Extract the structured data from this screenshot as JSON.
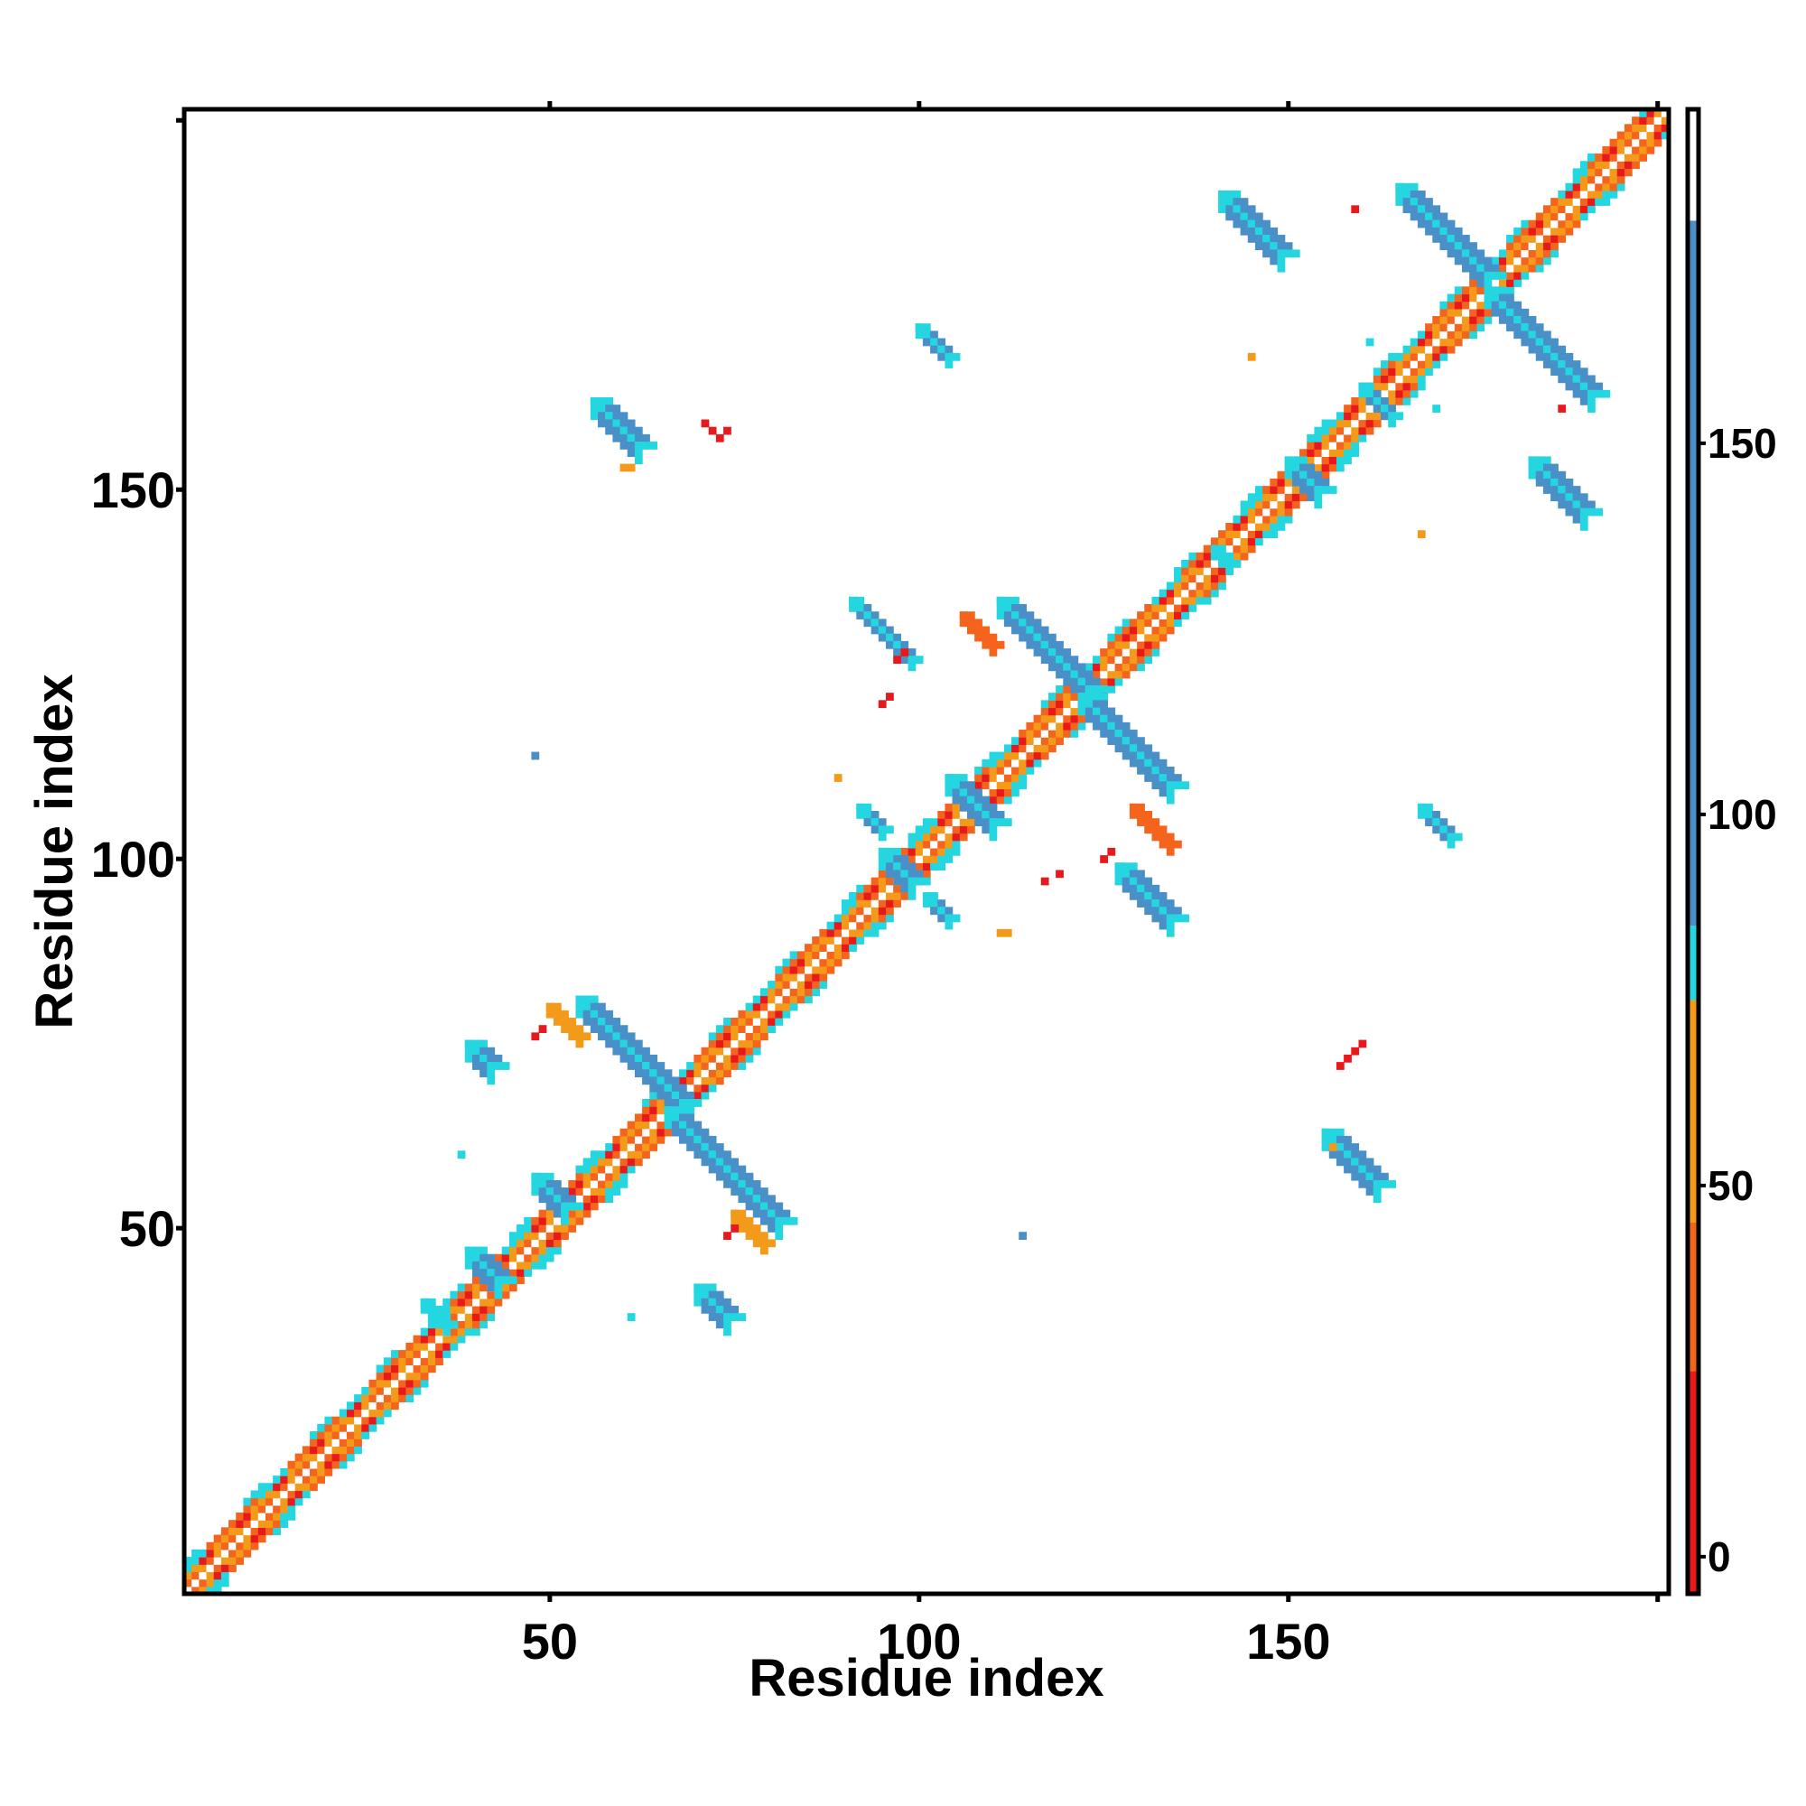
{
  "chart_data": {
    "type": "heatmap",
    "title": "",
    "xlabel": "Residue index",
    "ylabel": "Residue index",
    "xlim": [
      1,
      201
    ],
    "ylim": [
      1,
      201
    ],
    "x_ticks": [
      50,
      100,
      150
    ],
    "y_ticks": [
      50,
      100,
      150
    ],
    "x_tick_labels": [
      "50",
      "100",
      "150"
    ],
    "y_tick_labels": [
      "50",
      "100",
      "150"
    ],
    "colorbar": {
      "range": [
        -5,
        195
      ],
      "ticks": [
        0,
        50,
        100,
        150
      ],
      "tick_labels": [
        "0",
        "50",
        "100",
        "150"
      ],
      "bands": [
        {
          "from": -5,
          "to": 25,
          "color": "#e8191c"
        },
        {
          "from": 25,
          "to": 45,
          "color": "#f4641c"
        },
        {
          "from": 45,
          "to": 75,
          "color": "#f49a1a"
        },
        {
          "from": 75,
          "to": 85,
          "color": "#24d6e0"
        },
        {
          "from": 85,
          "to": 180,
          "color": "#4a90c8"
        },
        {
          "from": 180,
          "to": 195,
          "color": "#ffffff"
        }
      ]
    },
    "color_map": {
      "red": "#e8191c",
      "red_orange": "#f4641c",
      "orange": "#f49a1a",
      "cyan": "#24d6e0",
      "blue": "#4a90c8"
    },
    "diagonal": {
      "from": 1,
      "to": 201
    },
    "strands": [
      {
        "x0": 54,
        "x1": 68,
        "y_start": 81,
        "dir": -1,
        "w": 3,
        "color": "blue"
      },
      {
        "x0": 66,
        "x1": 81,
        "y_start": 66,
        "dir": -1,
        "w": 3,
        "color": "blue"
      },
      {
        "x0": 91,
        "x1": 99,
        "y_start": 135,
        "dir": -1,
        "w": 2,
        "color": "blue"
      },
      {
        "x0": 111,
        "x1": 123,
        "y_start": 135,
        "dir": -1,
        "w": 3,
        "color": "blue"
      },
      {
        "x0": 122,
        "x1": 134,
        "y_start": 122,
        "dir": -1,
        "w": 3,
        "color": "blue"
      },
      {
        "x0": 127,
        "x1": 134,
        "y_start": 99,
        "dir": -1,
        "w": 3,
        "color": "blue"
      },
      {
        "x0": 56,
        "x1": 62,
        "y_start": 162,
        "dir": -1,
        "w": 3,
        "color": "blue"
      },
      {
        "x0": 100,
        "x1": 104,
        "y_start": 172,
        "dir": -1,
        "w": 2,
        "color": "blue"
      },
      {
        "x0": 141,
        "x1": 149,
        "y_start": 190,
        "dir": -1,
        "w": 3,
        "color": "blue"
      },
      {
        "x0": 165,
        "x1": 177,
        "y_start": 191,
        "dir": -1,
        "w": 3,
        "color": "blue"
      },
      {
        "x0": 177,
        "x1": 191,
        "y_start": 177,
        "dir": -1,
        "w": 3,
        "color": "blue"
      },
      {
        "x0": 183,
        "x1": 190,
        "y_start": 154,
        "dir": -1,
        "w": 3,
        "color": "blue"
      },
      {
        "x0": 155,
        "x1": 162,
        "y_start": 63,
        "dir": -1,
        "w": 3,
        "color": "blue"
      },
      {
        "x0": 168,
        "x1": 172,
        "y_start": 107,
        "dir": -1,
        "w": 2,
        "color": "blue"
      },
      {
        "x0": 39,
        "x1": 42,
        "y_start": 75,
        "dir": -1,
        "w": 3,
        "color": "blue"
      },
      {
        "x0": 70,
        "x1": 74,
        "y_start": 42,
        "dir": -1,
        "w": 3,
        "color": "blue"
      },
      {
        "x0": 92,
        "x1": 95,
        "y_start": 107,
        "dir": -1,
        "w": 2,
        "color": "blue"
      },
      {
        "x0": 104,
        "x1": 110,
        "y_start": 111,
        "dir": -1,
        "w": 3,
        "color": "blue"
      },
      {
        "x0": 95,
        "x1": 99,
        "y_start": 101,
        "dir": -1,
        "w": 3,
        "color": "blue"
      },
      {
        "x0": 101,
        "x1": 104,
        "y_start": 95,
        "dir": -1,
        "w": 2,
        "color": "blue"
      },
      {
        "x0": 48,
        "x1": 52,
        "y_start": 57,
        "dir": -1,
        "w": 3,
        "color": "blue"
      },
      {
        "x0": 39,
        "x1": 43,
        "y_start": 47,
        "dir": -1,
        "w": 3,
        "color": "blue"
      },
      {
        "x0": 33,
        "x1": 36,
        "y_start": 40,
        "dir": -1,
        "w": 2,
        "color": "cyan"
      },
      {
        "x0": 160,
        "x1": 164,
        "y_start": 164,
        "dir": -1,
        "w": 2,
        "color": "blue"
      },
      {
        "x0": 150,
        "x1": 154,
        "y_start": 154,
        "dir": -1,
        "w": 3,
        "color": "blue"
      },
      {
        "x0": 140,
        "x1": 142,
        "y_start": 142,
        "dir": -1,
        "w": 2,
        "color": "cyan"
      },
      {
        "x0": 50,
        "x1": 54,
        "y_start": 80,
        "dir": -1,
        "w": 2,
        "color": "orange"
      },
      {
        "x0": 75,
        "x1": 79,
        "y_start": 52,
        "dir": -1,
        "w": 2,
        "color": "orange"
      },
      {
        "x0": 106,
        "x1": 110,
        "y_start": 133,
        "dir": -1,
        "w": 2,
        "color": "red_orange"
      },
      {
        "x0": 129,
        "x1": 134,
        "y_start": 107,
        "dir": -1,
        "w": 2,
        "color": "red_orange"
      }
    ],
    "red_points": [
      [
        71,
        159
      ],
      [
        72,
        158
      ],
      [
        73,
        157
      ],
      [
        74,
        158
      ],
      [
        97,
        127
      ],
      [
        98,
        128
      ],
      [
        95,
        121
      ],
      [
        96,
        122
      ],
      [
        117,
        97
      ],
      [
        119,
        98
      ],
      [
        125,
        100
      ],
      [
        126,
        101
      ],
      [
        49,
        77
      ],
      [
        48,
        76
      ],
      [
        74,
        49
      ],
      [
        75,
        50
      ],
      [
        159,
        74
      ],
      [
        158,
        73
      ],
      [
        157,
        72
      ],
      [
        160,
        75
      ],
      [
        187,
        161
      ],
      [
        159,
        188
      ]
    ],
    "orange_points": [
      [
        60,
        153
      ],
      [
        61,
        153
      ],
      [
        145,
        168
      ],
      [
        168,
        144
      ],
      [
        89,
        111
      ],
      [
        111,
        90
      ],
      [
        112,
        90
      ],
      [
        156,
        61
      ]
    ],
    "cyan_points": [
      [
        61,
        38
      ],
      [
        38,
        60
      ],
      [
        170,
        161
      ],
      [
        161,
        170
      ]
    ],
    "blue_points": [
      [
        48,
        114
      ],
      [
        114,
        49
      ]
    ]
  }
}
